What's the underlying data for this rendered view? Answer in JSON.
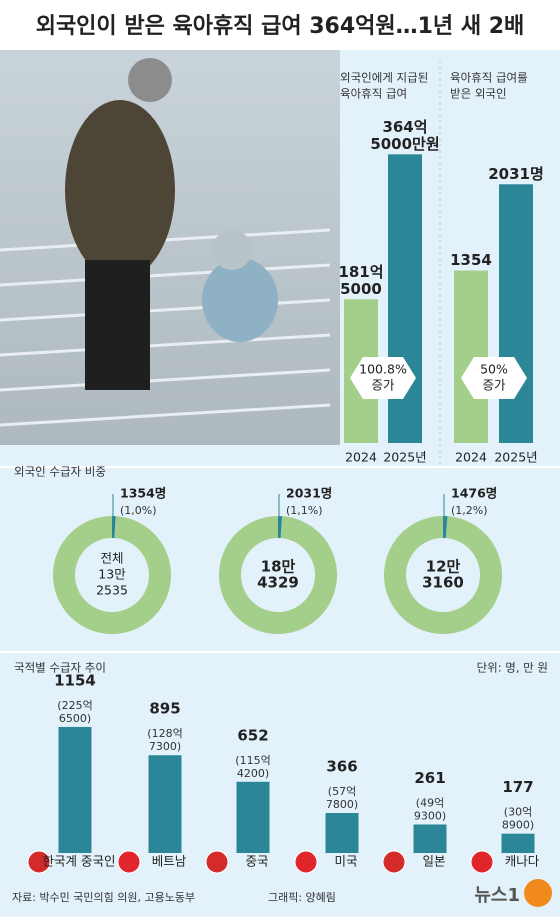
{
  "title": "외국인이 받은 육아휴직 급여 364억원…1년 새 2배",
  "source": "자료: 박수민 국민의힘 의원, 고용노동부",
  "credit": "그래픽: 양혜림",
  "logo": "뉴스1",
  "chart_data": [
    {
      "type": "bar",
      "title": [
        "외국인에게 지급된",
        "육아휴직 급여"
      ],
      "categories": [
        "2024",
        "2025년"
      ],
      "values": [
        1815000,
        3645000
      ],
      "value_labels": [
        [
          "181억",
          "5000"
        ],
        [
          "364억",
          "5000만원"
        ]
      ],
      "colors": [
        "#a3cf8b",
        "#2b8798"
      ],
      "ylim": [
        0,
        3700000
      ],
      "change_label": [
        "100.8%",
        "증가"
      ]
    },
    {
      "type": "bar",
      "title": [
        "육아휴직 급여를",
        "받은 외국인"
      ],
      "categories": [
        "2024",
        "2025년"
      ],
      "values": [
        1354,
        2031
      ],
      "value_labels": [
        [
          "1354"
        ],
        [
          "2031명"
        ]
      ],
      "colors": [
        "#a3cf8b",
        "#2b8798"
      ],
      "ylim": [
        0,
        2300
      ],
      "change_label": [
        "50%",
        "증가"
      ]
    },
    {
      "type": "donut",
      "title": "외국인 수급자 비중",
      "values": [
        1.0,
        1.1,
        1.2
      ],
      "value_labels": [
        "(1,0%)",
        "(1,1%)",
        "(1,2%)"
      ],
      "counts": [
        1354,
        2031,
        1476
      ],
      "count_labels": [
        "1354명",
        "2031명",
        "1476명"
      ],
      "totals": [
        132535,
        184329,
        123160
      ],
      "center_labels": [
        [
          "전체",
          "13만",
          "2535"
        ],
        [
          "18만",
          "4329"
        ],
        [
          "12만",
          "3160"
        ]
      ],
      "colors": [
        "#2b8798",
        "#a3cf8b"
      ]
    },
    {
      "type": "bar",
      "title": "국적별 수급자 추이",
      "unit": "단위: 명, 만 원",
      "categories": [
        "한국계 중국인",
        "베트남",
        "중국",
        "미국",
        "일본",
        "캐나다"
      ],
      "values": [
        1154,
        895,
        652,
        366,
        261,
        177
      ],
      "amount_labels": [
        [
          "(225억",
          "6500)"
        ],
        [
          "(128억",
          "7300)"
        ],
        [
          "(115억",
          "4200)"
        ],
        [
          "(57억",
          "7800)"
        ],
        [
          "(49억",
          "9300)"
        ],
        [
          "(30억",
          "8900)"
        ]
      ],
      "color": "#2b8798",
      "ylim": [
        0,
        1300
      ]
    }
  ]
}
